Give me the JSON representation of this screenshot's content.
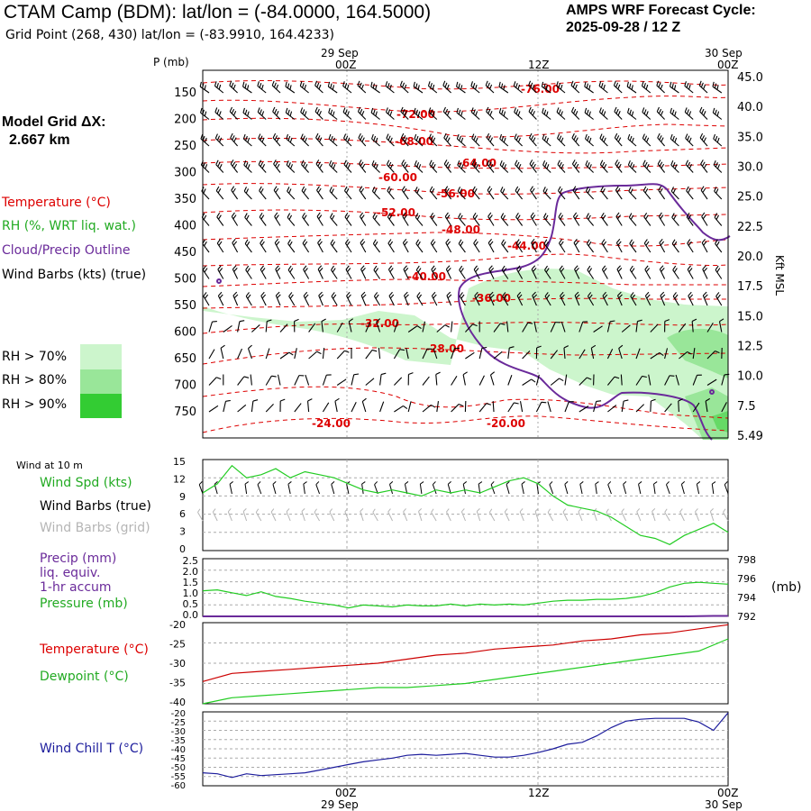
{
  "header": {
    "title": "CTAM Camp (BDM):  lat/lon = (-84.0000, 164.5000)",
    "subtitle": "Grid Point (268, 430) lat/lon = (-83.9910, 164.4233)",
    "cycle_line1": "AMPS WRF Forecast Cycle:",
    "cycle_line2": "2025-09-28 / 12  Z",
    "model_grid_line1": "Model Grid ΔX:",
    "model_grid_line2": "2.667 km"
  },
  "colors": {
    "temperature": "#dd0000",
    "rh": "#22aa22",
    "cloud": "#6a2a9a",
    "windchill": "#1c1c9c",
    "rh70": "#ccf5cc",
    "rh80": "#99e699",
    "rh90": "#33cc33"
  },
  "time_axis": {
    "top_dates": [
      "29 Sep",
      "30 Sep"
    ],
    "ticks": [
      "00Z",
      "12Z",
      "00Z"
    ],
    "bottom_dates": [
      "29 Sep",
      "30 Sep"
    ]
  },
  "upper_panel": {
    "p_label": "P (mb)",
    "kft_label": "Kft MSL",
    "pressure_ticks": [
      "150",
      "200",
      "250",
      "300",
      "350",
      "400",
      "450",
      "500",
      "550",
      "600",
      "650",
      "700",
      "750"
    ],
    "height_ticks": [
      "45.0",
      "40.0",
      "35.0",
      "30.0",
      "25.0",
      "22.5",
      "20.0",
      "17.5",
      "15.0",
      "12.5",
      "10.0",
      "7.5",
      "5.49"
    ],
    "legend": {
      "temperature": "Temperature (°C)",
      "rh": "RH (%, WRT liq. wat.)",
      "cloud": "Cloud/Precip Outline",
      "wind": "Wind Barbs (kts) (true)"
    },
    "rh_legend": [
      "RH > 70%",
      "RH > 80%",
      "RH > 90%"
    ],
    "isotherm_labels": [
      "-76.00",
      "-72.00",
      "-68.00",
      "-64.00",
      "-60.00",
      "-56.00",
      "-52.00",
      "-48.00",
      "-44.00",
      "-40.00",
      "-36.00",
      "-32.00",
      "-28.00",
      "-24.00",
      "-20.00"
    ]
  },
  "wind_panel": {
    "title": "Wind at 10 m",
    "y_ticks": [
      "15",
      "12",
      "9",
      "6",
      "3",
      "0"
    ],
    "legend": {
      "speed": "Wind Spd (kts)",
      "barbs_true": "Wind Barbs (true)",
      "barbs_grid": "Wind Barbs (grid)"
    }
  },
  "precip_panel": {
    "left_ticks": [
      "2.5",
      "2.0",
      "1.5",
      "1.0",
      "0.5",
      "0.0"
    ],
    "right_ticks": [
      "798",
      "796",
      "794",
      "792"
    ],
    "unit": "(mb)",
    "legend": [
      "Precip (mm)",
      "liq. equiv.",
      "1-hr accum",
      "Pressure (mb)"
    ]
  },
  "temp_panel": {
    "y_ticks": [
      "-20",
      "-25",
      "-30",
      "-35",
      "-40"
    ],
    "legend": {
      "temperature": "Temperature (°C)",
      "dewpoint": "Dewpoint (°C)"
    }
  },
  "windchill_panel": {
    "y_ticks": [
      "-20",
      "-25",
      "-30",
      "-35",
      "-40",
      "-45",
      "-50",
      "-55",
      "-60"
    ],
    "legend": "Wind Chill T (°C)"
  },
  "chart_data": [
    {
      "type": "line",
      "title": "Wind at 10 m",
      "ylabel": "Wind Spd (kts)",
      "ylim": [
        0,
        15
      ],
      "x_hours": [
        0,
        1,
        2,
        3,
        4,
        5,
        6,
        7,
        8,
        9,
        10,
        11,
        12,
        13,
        14,
        15,
        16,
        17,
        18,
        19,
        20,
        21,
        22,
        23,
        24,
        25,
        26,
        27,
        28,
        29,
        30,
        31,
        32,
        33,
        34,
        35,
        36
      ],
      "series": [
        {
          "name": "Wind Spd (kts)",
          "values": [
            9.5,
            11,
            14,
            12,
            12.5,
            13.5,
            12,
            13,
            12.5,
            12,
            11,
            10,
            9.5,
            10,
            9.5,
            9,
            10,
            9.5,
            10,
            9.5,
            10.5,
            11.5,
            12,
            11,
            9,
            7.5,
            7,
            6.5,
            5.5,
            4,
            2.5,
            2,
            1,
            2.5,
            3.5,
            4.5,
            3
          ]
        }
      ]
    },
    {
      "type": "line",
      "title": "Pressure (mb)",
      "ylabel": "Pressure (mb)",
      "ylim": [
        792,
        798
      ],
      "x_hours": [
        0,
        1,
        2,
        3,
        4,
        5,
        6,
        7,
        8,
        9,
        10,
        11,
        12,
        13,
        14,
        15,
        16,
        17,
        18,
        19,
        20,
        21,
        22,
        23,
        24,
        25,
        26,
        27,
        28,
        29,
        30,
        31,
        32,
        33,
        34,
        35,
        36
      ],
      "series": [
        {
          "name": "Pressure (mb)",
          "values": [
            794.7,
            794.8,
            794.5,
            794.2,
            794.6,
            794.1,
            793.9,
            793.6,
            793.4,
            793.2,
            792.9,
            793.2,
            793.1,
            793.0,
            793.2,
            793.1,
            793.1,
            793.3,
            793.1,
            793.3,
            793.2,
            793.3,
            793.2,
            793.4,
            793.6,
            793.7,
            793.7,
            793.8,
            793.8,
            793.9,
            794.1,
            794.5,
            795.1,
            795.5,
            795.6,
            795.5,
            795.4
          ]
        },
        {
          "name": "Precip (mm)",
          "values": [
            0,
            0,
            0,
            0,
            0,
            0,
            0,
            0,
            0,
            0,
            0,
            0,
            0,
            0,
            0,
            0,
            0,
            0,
            0,
            0,
            0,
            0,
            0,
            0,
            0,
            0,
            0,
            0,
            0,
            0,
            0,
            0,
            0,
            0,
            0.01,
            0.02,
            0.02
          ]
        }
      ]
    },
    {
      "type": "line",
      "title": "Temperature / Dewpoint",
      "ylabel": "°C",
      "ylim": [
        -40,
        -20
      ],
      "x_hours": [
        0,
        2,
        4,
        6,
        8,
        10,
        12,
        14,
        16,
        18,
        20,
        22,
        24,
        26,
        28,
        30,
        32,
        34,
        36
      ],
      "series": [
        {
          "name": "Temperature (°C)",
          "values": [
            -34.5,
            -32.5,
            -32,
            -31.5,
            -31,
            -30.5,
            -30,
            -29,
            -28,
            -27.5,
            -26.5,
            -26,
            -25.5,
            -24.5,
            -24,
            -23,
            -22.5,
            -21.5,
            -20.5
          ]
        },
        {
          "name": "Dewpoint (°C)",
          "values": [
            -40,
            -38.5,
            -38,
            -37.5,
            -37,
            -36.5,
            -36,
            -36,
            -35.5,
            -35,
            -34,
            -33,
            -32,
            -31,
            -30,
            -29,
            -28,
            -27,
            -24
          ]
        }
      ]
    },
    {
      "type": "line",
      "title": "Wind Chill T",
      "ylabel": "Wind Chill T (°C)",
      "ylim": [
        -60,
        -20
      ],
      "x_hours": [
        0,
        1,
        2,
        3,
        4,
        5,
        6,
        7,
        8,
        9,
        10,
        11,
        12,
        13,
        14,
        15,
        16,
        17,
        18,
        19,
        20,
        21,
        22,
        23,
        24,
        25,
        26,
        27,
        28,
        29,
        30,
        31,
        32,
        33,
        34,
        35,
        36
      ],
      "series": [
        {
          "name": "Wind Chill T (°C)",
          "values": [
            -53,
            -53.5,
            -55.5,
            -53.5,
            -54.5,
            -54,
            -53.5,
            -53,
            -51.5,
            -50,
            -48.5,
            -47,
            -46,
            -45,
            -43.5,
            -43,
            -43.5,
            -43,
            -42.5,
            -43.5,
            -44.5,
            -44.5,
            -43.5,
            -42,
            -40,
            -37.5,
            -36.5,
            -33,
            -28.5,
            -25,
            -24,
            -23.5,
            -23.5,
            -23.5,
            -25.5,
            -30,
            -20.5
          ]
        }
      ]
    }
  ]
}
